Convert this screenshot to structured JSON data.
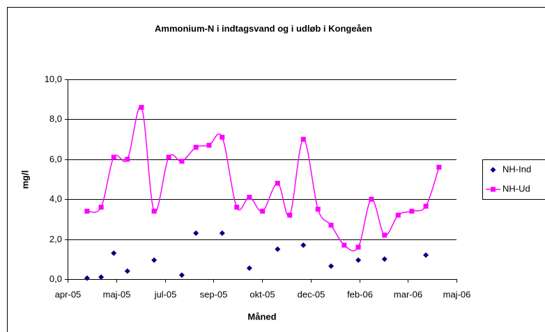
{
  "chart_data": {
    "type": "scatter",
    "title": "Ammonium-N i indtagsvand og i udløb i Kongeåen",
    "x_label": "Måned",
    "y_label": "mg/l",
    "xlim": [
      0,
      8
    ],
    "xticks": [
      {
        "value": 0,
        "label": "apr-05"
      },
      {
        "value": 1,
        "label": "maj-05"
      },
      {
        "value": 2,
        "label": "jul-05"
      },
      {
        "value": 3,
        "label": "sep-05"
      },
      {
        "value": 4,
        "label": "okt-05"
      },
      {
        "value": 5,
        "label": "dec-05"
      },
      {
        "value": 6,
        "label": "feb-06"
      },
      {
        "value": 7,
        "label": "mar-06"
      },
      {
        "value": 8,
        "label": "maj-06"
      }
    ],
    "ylim": [
      0,
      10
    ],
    "yticks": [
      {
        "value": 0,
        "label": "0,0"
      },
      {
        "value": 2,
        "label": "2,0"
      },
      {
        "value": 4,
        "label": "4,0"
      },
      {
        "value": 6,
        "label": "6,0"
      },
      {
        "value": 8,
        "label": "8,0"
      },
      {
        "value": 10,
        "label": "10,0"
      }
    ],
    "grid": true,
    "legend": "right",
    "series": [
      {
        "name": "NH-Ind",
        "color": "#000080",
        "marker": "diamond",
        "line": false,
        "x": [
          0.4,
          0.69,
          0.95,
          1.23,
          1.78,
          2.35,
          2.64,
          3.18,
          3.74,
          4.32,
          4.85,
          5.42,
          5.98,
          6.52,
          7.37
        ],
        "values": [
          0.05,
          0.1,
          1.3,
          0.4,
          0.95,
          0.2,
          2.3,
          2.3,
          0.55,
          1.5,
          1.7,
          0.65,
          0.95,
          1.0,
          1.2
        ]
      },
      {
        "name": "NH-Ud",
        "color": "#ff00ff",
        "marker": "square",
        "line": true,
        "x": [
          0.4,
          0.69,
          0.95,
          1.23,
          1.52,
          1.78,
          2.08,
          2.35,
          2.64,
          2.91,
          3.18,
          3.48,
          3.74,
          4.01,
          4.32,
          4.57,
          4.85,
          5.15,
          5.42,
          5.69,
          5.98,
          6.25,
          6.52,
          6.8,
          7.08,
          7.37,
          7.64
        ],
        "values": [
          3.4,
          3.6,
          6.1,
          6.0,
          8.6,
          3.4,
          6.1,
          5.9,
          6.6,
          6.7,
          7.1,
          3.6,
          4.1,
          3.4,
          4.8,
          3.2,
          7.0,
          3.5,
          2.7,
          1.7,
          1.6,
          4.0,
          2.2,
          3.2,
          3.4,
          3.65,
          5.6
        ]
      }
    ]
  }
}
